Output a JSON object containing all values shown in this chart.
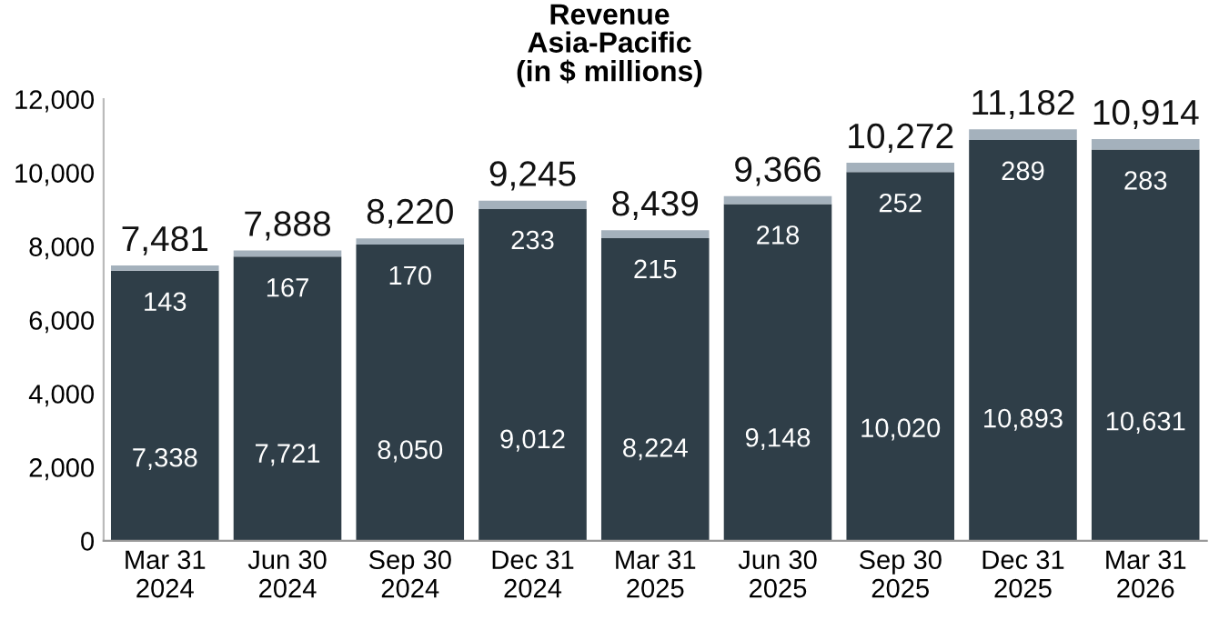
{
  "chart_data": {
    "type": "bar",
    "stacked": true,
    "title": "Revenue\nAsia-Pacific\n(in $ millions)",
    "categories": [
      "Mar 31\n2024",
      "Jun 30\n2024",
      "Sep 30\n2024",
      "Dec 31\n2024",
      "Mar 31\n2025",
      "Jun 30\n2025",
      "Sep 30\n2025",
      "Dec 31\n2025",
      "Mar 31\n2026"
    ],
    "series": [
      {
        "color": "#2f3e48",
        "values": [
          7338,
          7721,
          8050,
          9012,
          8224,
          9148,
          10020,
          10893,
          10631
        ],
        "value_labels": [
          "7,338",
          "7,721",
          "8,050",
          "9,012",
          "8,224",
          "9,148",
          "10,020",
          "10,893",
          "10,631"
        ]
      },
      {
        "color": "#a4b1bc",
        "values": [
          143,
          167,
          170,
          233,
          215,
          218,
          252,
          289,
          283
        ],
        "value_labels": [
          "143",
          "167",
          "170",
          "233",
          "215",
          "218",
          "252",
          "289",
          "283"
        ]
      }
    ],
    "totals": [
      "7,481",
      "7,888",
      "8,220",
      "9,245",
      "8,439",
      "9,366",
      "10,272",
      "11,182",
      "10,914"
    ],
    "ylim": [
      0,
      12000
    ],
    "yticks": [
      0,
      {
        "value": 2000,
        "label": "2,000"
      },
      {
        "value": 4000,
        "label": "4,000"
      },
      {
        "value": 6000,
        "label": "6,000"
      },
      {
        "value": 8000,
        "label": "8,000"
      },
      {
        "value": 10000,
        "label": "10,000"
      },
      {
        "value": 12000,
        "label": "12,000"
      }
    ],
    "grid": false,
    "legend": false
  }
}
